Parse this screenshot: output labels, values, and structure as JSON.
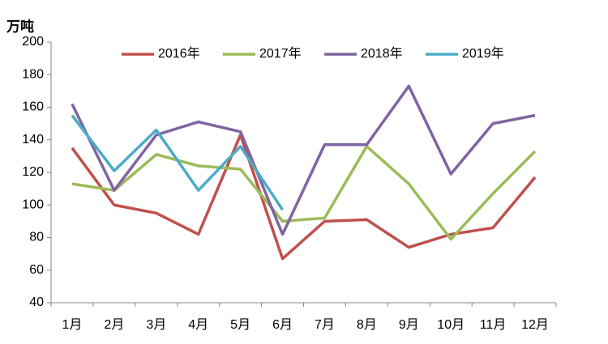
{
  "chart_data": {
    "type": "line",
    "y_label": "万吨",
    "categories": [
      "1月",
      "2月",
      "3月",
      "4月",
      "5月",
      "6月",
      "7月",
      "8月",
      "9月",
      "10月",
      "11月",
      "12月"
    ],
    "series": [
      {
        "name": "2016年",
        "color": "#c0504d",
        "values": [
          135,
          100,
          95,
          82,
          143,
          67,
          90,
          91,
          74,
          82,
          86,
          117
        ]
      },
      {
        "name": "2017年",
        "color": "#9bbb59",
        "values": [
          113,
          109,
          131,
          124,
          122,
          90,
          92,
          136,
          113,
          79,
          107,
          133
        ]
      },
      {
        "name": "2018年",
        "color": "#8064a2",
        "values": [
          162,
          109,
          143,
          151,
          145,
          82,
          137,
          137,
          173,
          119,
          150,
          155
        ]
      },
      {
        "name": "2019年",
        "color": "#4bacc6",
        "values": [
          155,
          121,
          146,
          109,
          136,
          97,
          null,
          null,
          null,
          null,
          null,
          null
        ]
      }
    ],
    "ylim": [
      40,
      200
    ],
    "yticks": [
      40,
      60,
      80,
      100,
      120,
      140,
      160,
      180,
      200
    ],
    "grid": false,
    "legend": "top"
  }
}
